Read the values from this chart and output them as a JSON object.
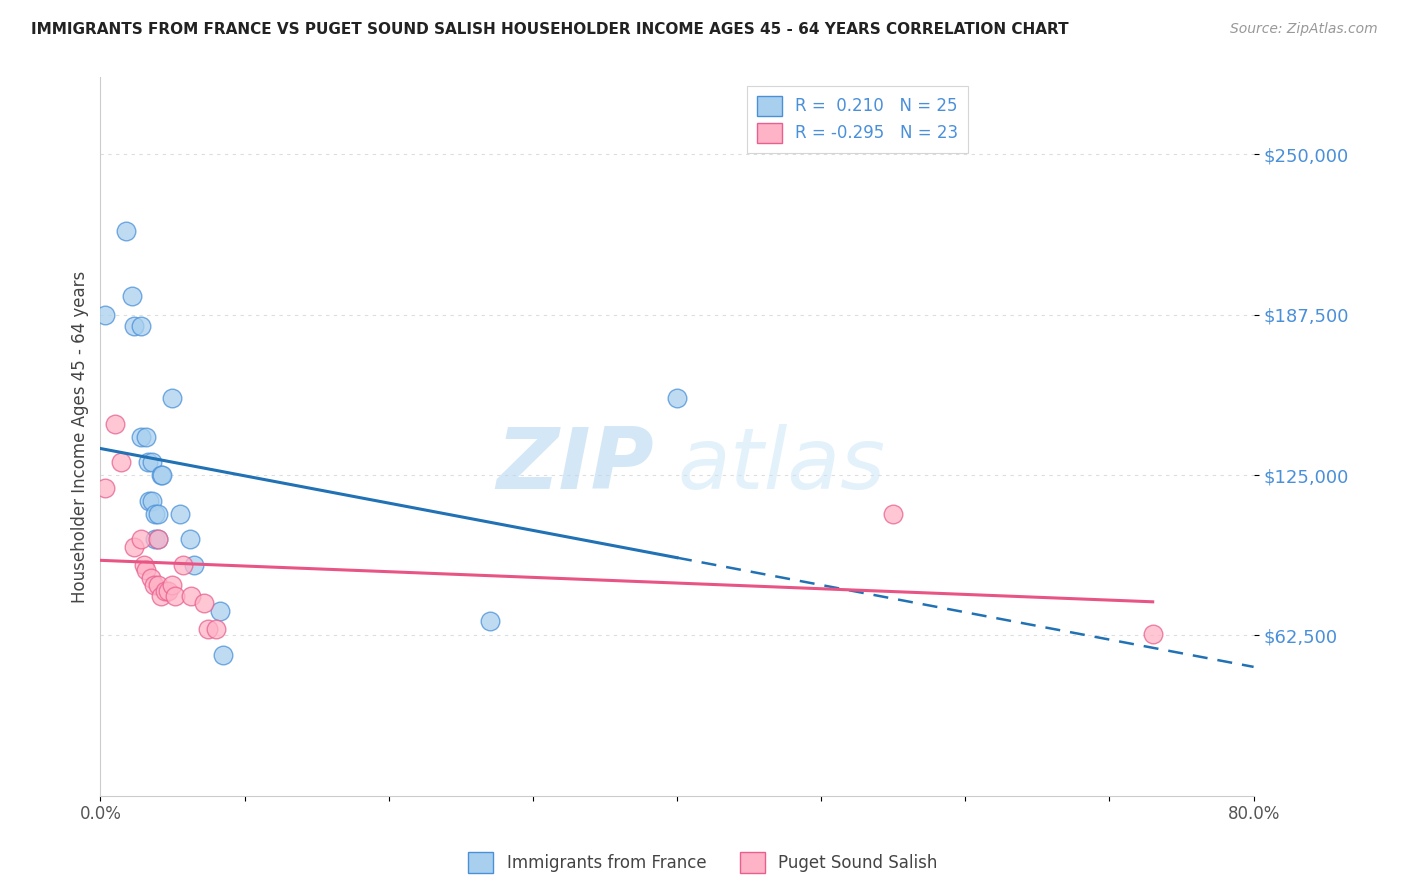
{
  "title": "IMMIGRANTS FROM FRANCE VS PUGET SOUND SALISH HOUSEHOLDER INCOME AGES 45 - 64 YEARS CORRELATION CHART",
  "source": "Source: ZipAtlas.com",
  "ylabel": "Householder Income Ages 45 - 64 years",
  "xlim": [
    0.0,
    0.8
  ],
  "ylim": [
    0,
    280000
  ],
  "yticks": [
    62500,
    125000,
    187500,
    250000
  ],
  "ytick_labels": [
    "$62,500",
    "$125,000",
    "$187,500",
    "$250,000"
  ],
  "xticks": [
    0.0,
    0.1,
    0.2,
    0.3,
    0.4,
    0.5,
    0.6,
    0.7,
    0.8
  ],
  "xtick_labels": [
    "0.0%",
    "",
    "",
    "",
    "",
    "",
    "",
    "",
    "80.0%"
  ],
  "watermark_zip": "ZIP",
  "watermark_atlas": "atlas",
  "blue_label": "Immigrants from France",
  "pink_label": "Puget Sound Salish",
  "blue_R": 0.21,
  "blue_N": 25,
  "pink_R": -0.295,
  "pink_N": 23,
  "blue_color": "#a8d0ee",
  "pink_color": "#ffb3c6",
  "blue_edge_color": "#4a90d9",
  "pink_edge_color": "#e86090",
  "blue_line_color": "#2171b5",
  "pink_line_color": "#e85585",
  "blue_scatter_x": [
    0.003,
    0.018,
    0.022,
    0.023,
    0.028,
    0.028,
    0.032,
    0.033,
    0.034,
    0.036,
    0.036,
    0.038,
    0.038,
    0.04,
    0.04,
    0.042,
    0.043,
    0.05,
    0.055,
    0.062,
    0.065,
    0.083,
    0.085,
    0.27,
    0.4
  ],
  "blue_scatter_y": [
    187500,
    220000,
    195000,
    183000,
    183000,
    140000,
    140000,
    130000,
    115000,
    130000,
    115000,
    110000,
    100000,
    110000,
    100000,
    125000,
    125000,
    155000,
    110000,
    100000,
    90000,
    72000,
    55000,
    68000,
    155000
  ],
  "pink_scatter_x": [
    0.003,
    0.01,
    0.014,
    0.023,
    0.028,
    0.03,
    0.032,
    0.035,
    0.037,
    0.04,
    0.04,
    0.042,
    0.045,
    0.047,
    0.05,
    0.052,
    0.057,
    0.063,
    0.072,
    0.075,
    0.08,
    0.55,
    0.73
  ],
  "pink_scatter_y": [
    120000,
    145000,
    130000,
    97000,
    100000,
    90000,
    88000,
    85000,
    82000,
    100000,
    82000,
    78000,
    80000,
    80000,
    82000,
    78000,
    90000,
    78000,
    75000,
    65000,
    65000,
    110000,
    63000
  ],
  "background_color": "#ffffff",
  "grid_color": "#dddddd",
  "title_color": "#222222",
  "source_color": "#999999",
  "label_color": "#4a90d9"
}
